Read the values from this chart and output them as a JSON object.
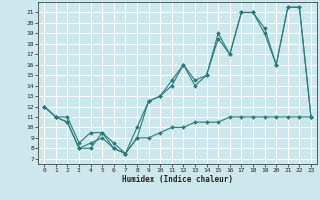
{
  "title": "",
  "xlabel": "Humidex (Indice chaleur)",
  "bg_color": "#cce8ec",
  "grid_color": "#ffffff",
  "line_color": "#2d7a7a",
  "xlim": [
    -0.5,
    23.5
  ],
  "ylim": [
    6.5,
    22.0
  ],
  "yticks": [
    7,
    8,
    9,
    10,
    11,
    12,
    13,
    14,
    15,
    16,
    17,
    18,
    19,
    20,
    21
  ],
  "xticks": [
    0,
    1,
    2,
    3,
    4,
    5,
    6,
    7,
    8,
    9,
    10,
    11,
    12,
    13,
    14,
    15,
    16,
    17,
    18,
    19,
    20,
    21,
    22,
    23
  ],
  "series1_x": [
    0,
    1,
    2,
    3,
    4,
    5,
    6,
    7,
    8,
    9,
    10,
    11,
    12,
    13,
    14,
    15,
    16,
    17,
    18,
    19,
    20,
    21,
    22,
    23
  ],
  "series1_y": [
    12,
    11,
    11,
    8.5,
    9.5,
    9.5,
    8.5,
    7.5,
    9,
    12.5,
    13,
    14.5,
    16,
    14,
    15,
    18.5,
    17,
    21,
    21,
    19,
    16,
    21.5,
    21.5,
    11
  ],
  "series2_x": [
    0,
    1,
    2,
    3,
    4,
    5,
    6,
    7,
    8,
    9,
    10,
    11,
    12,
    13,
    14,
    15,
    16,
    17,
    18,
    19,
    20,
    21,
    22,
    23
  ],
  "series2_y": [
    12,
    11,
    10.5,
    8,
    8,
    9.5,
    8,
    7.5,
    10,
    12.5,
    13,
    14,
    16,
    14.5,
    15,
    19,
    17,
    21,
    21,
    19.5,
    16,
    21.5,
    21.5,
    11
  ],
  "series3_x": [
    0,
    1,
    2,
    3,
    4,
    5,
    6,
    7,
    8,
    9,
    10,
    11,
    12,
    13,
    14,
    15,
    16,
    17,
    18,
    19,
    20,
    21,
    22,
    23
  ],
  "series3_y": [
    12,
    11,
    10.5,
    8,
    8.5,
    9,
    8,
    7.5,
    9,
    9,
    9.5,
    10,
    10,
    10.5,
    10.5,
    10.5,
    11,
    11,
    11,
    11,
    11,
    11,
    11,
    11
  ]
}
